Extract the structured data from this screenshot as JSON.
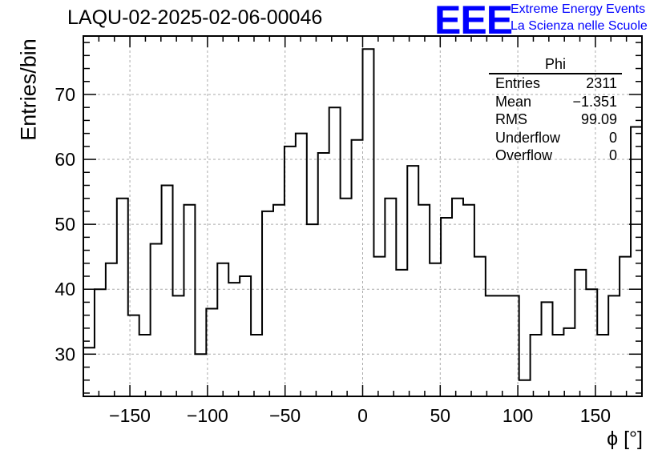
{
  "title": "LAQU-02-2025-02-06-00046",
  "logo": {
    "mark": "EEE",
    "line1": "Extreme Energy Events",
    "line2": "La Scienza nelle Scuole",
    "color": "#0000ff"
  },
  "stats": {
    "title": "Phi",
    "rows": [
      {
        "label": "Entries",
        "value": "2311"
      },
      {
        "label": "Mean",
        "value": "−1.351"
      },
      {
        "label": "RMS",
        "value": "99.09"
      },
      {
        "label": "Underflow",
        "value": "0"
      },
      {
        "label": "Overflow",
        "value": "0"
      }
    ]
  },
  "chart_data": {
    "type": "bar",
    "style": "step-histogram",
    "xlabel": "ϕ [°]",
    "ylabel": "Entries/bin",
    "xlim": [
      -180,
      180
    ],
    "ylim": [
      23.5,
      79
    ],
    "bin_edges_start": -180,
    "bin_width": 7.2,
    "values": [
      31,
      40,
      44,
      54,
      36,
      33,
      47,
      56,
      39,
      53,
      30,
      37,
      44,
      41,
      42,
      33,
      52,
      53,
      62,
      64,
      50,
      61,
      68,
      54,
      63,
      77,
      45,
      54,
      43,
      59,
      53,
      44,
      51,
      54,
      53,
      45,
      39,
      39,
      39,
      26,
      33,
      38,
      33,
      34,
      43,
      40,
      33,
      39,
      45,
      65
    ],
    "xticks": [
      -150,
      -100,
      -50,
      0,
      50,
      100,
      150
    ],
    "xtick_labels": [
      "−150",
      "−100",
      "−50",
      "0",
      "50",
      "100",
      "150"
    ],
    "yticks": [
      30,
      40,
      50,
      60,
      70
    ],
    "ytick_labels": [
      "30",
      "40",
      "50",
      "60",
      "70"
    ],
    "grid": true,
    "line_color": "#000000",
    "grid_color": "#aaaaaa"
  }
}
